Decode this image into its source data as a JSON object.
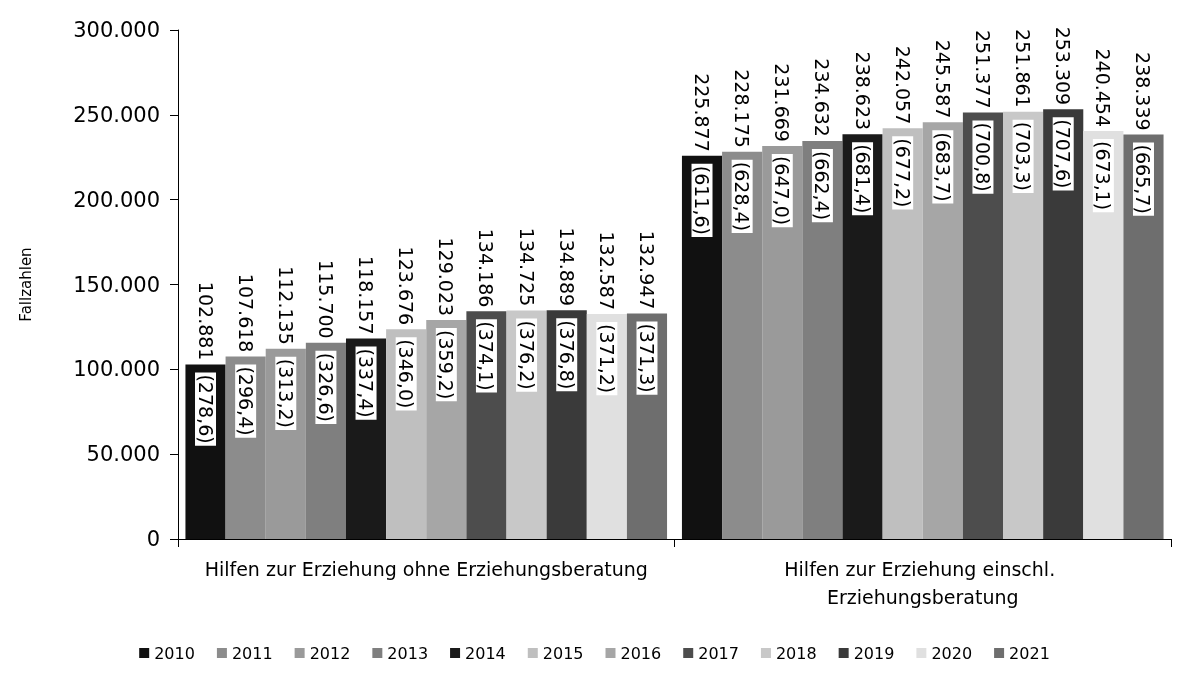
{
  "chart_data": {
    "type": "bar",
    "ylabel": "Fallzahlen",
    "categories": [
      "Hilfen zur Erziehung ohne Erziehungsberatung",
      "Hilfen zur Erziehung einschl. Erziehungsberatung"
    ],
    "series": [
      {
        "name": "2010",
        "color": "#111111",
        "values": [
          102881,
          225877
        ],
        "value_labels": [
          "102.881",
          "225.877"
        ]
      },
      {
        "name": "2011",
        "color": "#8c8c8c",
        "values": [
          107618,
          228175
        ],
        "value_labels": [
          "107.618",
          "228.175"
        ]
      },
      {
        "name": "2012",
        "color": "#9a9a9a",
        "values": [
          112135,
          231669
        ],
        "value_labels": [
          "112.135",
          "231.669"
        ]
      },
      {
        "name": "2013",
        "color": "#7f7f7f",
        "values": [
          115700,
          234632
        ],
        "value_labels": [
          "115.700",
          "234.632"
        ]
      },
      {
        "name": "2014",
        "color": "#1a1a1a",
        "values": [
          118157,
          238623
        ],
        "value_labels": [
          "118.157",
          "238.623"
        ]
      },
      {
        "name": "2015",
        "color": "#bfbfbf",
        "values": [
          123676,
          242057
        ],
        "value_labels": [
          "123.676",
          "242.057"
        ]
      },
      {
        "name": "2016",
        "color": "#a6a6a6",
        "values": [
          129023,
          245587
        ],
        "value_labels": [
          "129.023",
          "245.587"
        ]
      },
      {
        "name": "2017",
        "color": "#4d4d4d",
        "values": [
          134186,
          251377
        ],
        "value_labels": [
          "134.186",
          "251.377"
        ]
      },
      {
        "name": "2018",
        "color": "#c8c8c8",
        "values": [
          134725,
          251861
        ],
        "value_labels": [
          "134.725",
          "251.861"
        ]
      },
      {
        "name": "2019",
        "color": "#3a3a3a",
        "values": [
          134889,
          253309
        ],
        "value_labels": [
          "134.889",
          "253.309"
        ]
      },
      {
        "name": "2020",
        "color": "#e0e0e0",
        "values": [
          132587,
          240454
        ],
        "value_labels": [
          "132.587",
          "240.454"
        ]
      },
      {
        "name": "2021",
        "color": "#6e6e6e",
        "values": [
          132947,
          238339
        ],
        "value_labels": [
          "132.947",
          "238.339"
        ]
      }
    ],
    "annotations": [
      "(278,6)",
      "(296,4)",
      "(313,2)",
      "(326,6)",
      "(337,4)",
      "(346,0)",
      "(359,2)",
      "(374,1)",
      "(376,2)",
      "(376,8)",
      "(371,2)",
      "(371,3)",
      "(611,6)",
      "(628,4)",
      "(647,0)",
      "(662,4)",
      "(681,4)",
      "(677,2)",
      "(683,7)",
      "(700,8)",
      "(703,3)",
      "(707,6)",
      "(673,1)",
      "(665,7)"
    ],
    "ylim": [
      0,
      300000
    ],
    "yticks": [
      {
        "value": 0,
        "label": "0"
      },
      {
        "value": 50000,
        "label": "50.000"
      },
      {
        "value": 100000,
        "label": "100.000"
      },
      {
        "value": 150000,
        "label": "150.000"
      },
      {
        "value": 200000,
        "label": "200.000"
      },
      {
        "value": 250000,
        "label": "250.000"
      },
      {
        "value": 300000,
        "label": "300.000"
      }
    ],
    "grid": false,
    "legend": "bottom"
  }
}
